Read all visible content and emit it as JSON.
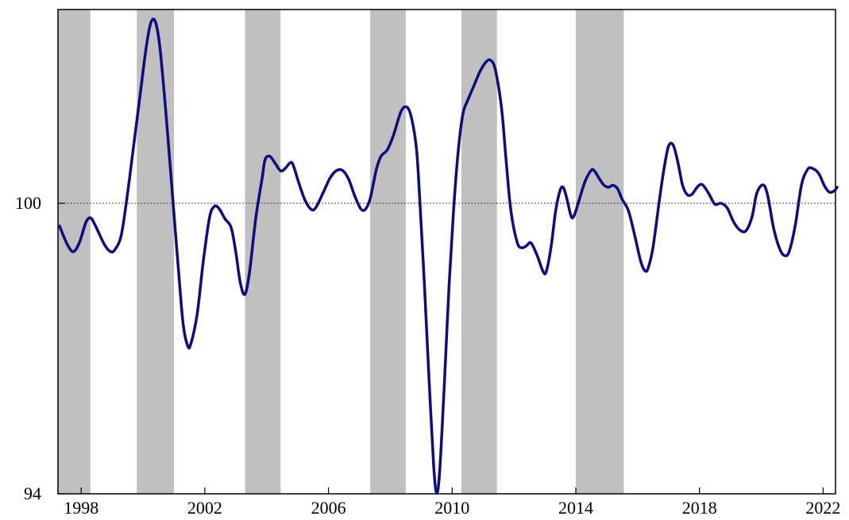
{
  "chart_data": {
    "type": "line",
    "title": "",
    "xlabel": "",
    "ylabel": "",
    "xlim": [
      1997.25,
      2022.4
    ],
    "ylim": [
      94,
      104
    ],
    "grid": false,
    "legend": "none",
    "x_ticks": [
      1998,
      2002,
      2006,
      2010,
      2014,
      2018,
      2022
    ],
    "x_tick_labels": [
      "1998",
      "2002",
      "2006",
      "2010",
      "2014",
      "2018",
      "2022"
    ],
    "y_tick_labels": [
      {
        "value": 100,
        "label": "100"
      },
      {
        "value": 94,
        "label": "94"
      }
    ],
    "reference_line": {
      "y": 100,
      "style": "dotted"
    },
    "shaded_periods": [
      [
        1997.25,
        1998.3
      ],
      [
        1999.8,
        2001.0
      ],
      [
        2003.3,
        2004.45
      ],
      [
        2007.35,
        2008.5
      ],
      [
        2010.3,
        2011.45
      ],
      [
        2014.0,
        2015.55
      ]
    ],
    "colors": {
      "line": "#0d0d80",
      "shade": "#c0c0c0",
      "axis": "#000000"
    },
    "series": [
      {
        "values": [
          [
            1997.3,
            99.53
          ],
          [
            1997.55,
            99.15
          ],
          [
            1997.75,
            99.0
          ],
          [
            1997.95,
            99.2
          ],
          [
            1998.15,
            99.6
          ],
          [
            1998.3,
            99.7
          ],
          [
            1998.45,
            99.55
          ],
          [
            1998.75,
            99.15
          ],
          [
            1998.95,
            99.0
          ],
          [
            1999.1,
            99.05
          ],
          [
            1999.3,
            99.35
          ],
          [
            1999.5,
            100.2
          ],
          [
            1999.7,
            101.2
          ],
          [
            1999.9,
            102.2
          ],
          [
            2000.1,
            103.2
          ],
          [
            2000.25,
            103.72
          ],
          [
            2000.4,
            103.75
          ],
          [
            2000.55,
            103.2
          ],
          [
            2000.75,
            101.8
          ],
          [
            2000.95,
            100.2
          ],
          [
            2001.15,
            98.6
          ],
          [
            2001.3,
            97.5
          ],
          [
            2001.45,
            97.05
          ],
          [
            2001.55,
            97.1
          ],
          [
            2001.75,
            97.7
          ],
          [
            2001.95,
            98.8
          ],
          [
            2002.15,
            99.7
          ],
          [
            2002.3,
            99.93
          ],
          [
            2002.45,
            99.9
          ],
          [
            2002.65,
            99.68
          ],
          [
            2002.85,
            99.5
          ],
          [
            2003.0,
            99.0
          ],
          [
            2003.15,
            98.35
          ],
          [
            2003.3,
            98.12
          ],
          [
            2003.45,
            98.6
          ],
          [
            2003.65,
            99.7
          ],
          [
            2003.85,
            100.5
          ],
          [
            2003.95,
            100.9
          ],
          [
            2004.1,
            100.97
          ],
          [
            2004.25,
            100.85
          ],
          [
            2004.45,
            100.67
          ],
          [
            2004.6,
            100.72
          ],
          [
            2004.75,
            100.83
          ],
          [
            2004.85,
            100.8
          ],
          [
            2005.05,
            100.4
          ],
          [
            2005.25,
            100.05
          ],
          [
            2005.45,
            99.87
          ],
          [
            2005.6,
            99.92
          ],
          [
            2005.85,
            100.25
          ],
          [
            2006.05,
            100.52
          ],
          [
            2006.25,
            100.67
          ],
          [
            2006.45,
            100.68
          ],
          [
            2006.65,
            100.5
          ],
          [
            2006.85,
            100.15
          ],
          [
            2007.05,
            99.88
          ],
          [
            2007.2,
            99.88
          ],
          [
            2007.35,
            100.1
          ],
          [
            2007.55,
            100.7
          ],
          [
            2007.7,
            100.97
          ],
          [
            2007.9,
            101.1
          ],
          [
            2008.1,
            101.4
          ],
          [
            2008.35,
            101.9
          ],
          [
            2008.55,
            101.98
          ],
          [
            2008.7,
            101.72
          ],
          [
            2008.85,
            101.1
          ],
          [
            2008.95,
            100.1
          ],
          [
            2009.1,
            98.35
          ],
          [
            2009.25,
            96.4
          ],
          [
            2009.4,
            94.6
          ],
          [
            2009.5,
            94.02
          ],
          [
            2009.6,
            94.5
          ],
          [
            2009.75,
            96.3
          ],
          [
            2009.9,
            98.3
          ],
          [
            2010.05,
            99.9
          ],
          [
            2010.2,
            101.1
          ],
          [
            2010.35,
            101.85
          ],
          [
            2010.5,
            102.12
          ],
          [
            2010.7,
            102.42
          ],
          [
            2010.9,
            102.72
          ],
          [
            2011.1,
            102.92
          ],
          [
            2011.25,
            102.95
          ],
          [
            2011.4,
            102.75
          ],
          [
            2011.6,
            101.95
          ],
          [
            2011.75,
            100.85
          ],
          [
            2011.9,
            99.85
          ],
          [
            2012.1,
            99.2
          ],
          [
            2012.25,
            99.08
          ],
          [
            2012.4,
            99.12
          ],
          [
            2012.55,
            99.18
          ],
          [
            2012.75,
            98.92
          ],
          [
            2012.95,
            98.58
          ],
          [
            2013.05,
            98.6
          ],
          [
            2013.2,
            99.1
          ],
          [
            2013.35,
            99.85
          ],
          [
            2013.5,
            100.28
          ],
          [
            2013.6,
            100.32
          ],
          [
            2013.7,
            100.12
          ],
          [
            2013.85,
            99.73
          ],
          [
            2013.95,
            99.75
          ],
          [
            2014.1,
            100.05
          ],
          [
            2014.3,
            100.45
          ],
          [
            2014.5,
            100.68
          ],
          [
            2014.6,
            100.67
          ],
          [
            2014.75,
            100.52
          ],
          [
            2014.9,
            100.38
          ],
          [
            2015.05,
            100.33
          ],
          [
            2015.2,
            100.37
          ],
          [
            2015.35,
            100.3
          ],
          [
            2015.5,
            100.08
          ],
          [
            2015.7,
            99.85
          ],
          [
            2015.9,
            99.35
          ],
          [
            2016.1,
            98.8
          ],
          [
            2016.25,
            98.6
          ],
          [
            2016.35,
            98.68
          ],
          [
            2016.5,
            99.1
          ],
          [
            2016.7,
            100.05
          ],
          [
            2016.85,
            100.7
          ],
          [
            2017.0,
            101.18
          ],
          [
            2017.15,
            101.2
          ],
          [
            2017.3,
            100.85
          ],
          [
            2017.45,
            100.38
          ],
          [
            2017.6,
            100.18
          ],
          [
            2017.75,
            100.18
          ],
          [
            2017.95,
            100.35
          ],
          [
            2018.1,
            100.38
          ],
          [
            2018.3,
            100.2
          ],
          [
            2018.5,
            99.98
          ],
          [
            2018.7,
            100.0
          ],
          [
            2018.9,
            99.9
          ],
          [
            2019.1,
            99.62
          ],
          [
            2019.3,
            99.45
          ],
          [
            2019.5,
            99.43
          ],
          [
            2019.7,
            99.72
          ],
          [
            2019.85,
            100.2
          ],
          [
            2020.05,
            100.38
          ],
          [
            2020.2,
            100.18
          ],
          [
            2020.4,
            99.48
          ],
          [
            2020.6,
            99.05
          ],
          [
            2020.75,
            98.92
          ],
          [
            2020.9,
            99.0
          ],
          [
            2021.1,
            99.55
          ],
          [
            2021.3,
            100.38
          ],
          [
            2021.5,
            100.7
          ],
          [
            2021.65,
            100.72
          ],
          [
            2021.85,
            100.62
          ],
          [
            2022.05,
            100.35
          ],
          [
            2022.2,
            100.23
          ],
          [
            2022.35,
            100.25
          ],
          [
            2022.45,
            100.33
          ]
        ]
      }
    ]
  }
}
